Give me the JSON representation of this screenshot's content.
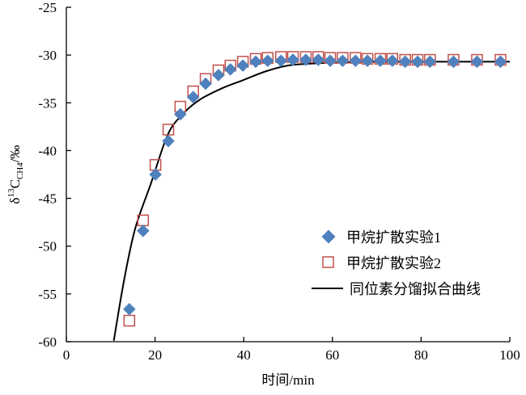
{
  "chart_data": {
    "type": "scatter",
    "xlabel": "时间/min",
    "ylabel_parts": {
      "delta": "δ",
      "sup": "13",
      "main": "C",
      "sub": "CH4",
      "unit": "/‰"
    },
    "xlim": [
      0,
      100
    ],
    "ylim": [
      -60,
      -25
    ],
    "x_ticks": [
      "0",
      "20",
      "40",
      "60",
      "80",
      "100"
    ],
    "y_ticks": [
      "-60",
      "-55",
      "-50",
      "-45",
      "-40",
      "-35",
      "-30",
      "-25"
    ],
    "grid": false,
    "legend_position": "bottom-right",
    "series": [
      {
        "name": "甲烷扩散实验1",
        "marker": "diamond",
        "color": "#4f81bd",
        "x": [
          14.2,
          17.3,
          20.1,
          23.0,
          25.7,
          28.6,
          31.4,
          34.3,
          37.0,
          39.8,
          42.7,
          45.4,
          48.4,
          51.1,
          54.0,
          56.8,
          59.5,
          62.3,
          65.2,
          67.9,
          70.8,
          73.5,
          76.4,
          79.2,
          82.0,
          87.3,
          92.6,
          97.9
        ],
        "y": [
          -56.6,
          -48.4,
          -42.5,
          -39.0,
          -36.2,
          -34.4,
          -33.0,
          -32.1,
          -31.5,
          -31.1,
          -30.7,
          -30.6,
          -30.6,
          -30.5,
          -30.5,
          -30.5,
          -30.6,
          -30.6,
          -30.6,
          -30.6,
          -30.6,
          -30.6,
          -30.7,
          -30.7,
          -30.7,
          -30.7,
          -30.7,
          -30.7
        ]
      },
      {
        "name": "甲烷扩散实验2",
        "marker": "square-open",
        "color": "#c0504d",
        "x": [
          14.2,
          17.3,
          20.1,
          23.0,
          25.7,
          28.6,
          31.4,
          34.3,
          37.0,
          39.8,
          42.7,
          45.4,
          48.4,
          51.1,
          54.0,
          56.8,
          59.5,
          62.3,
          65.2,
          67.9,
          70.8,
          73.5,
          76.4,
          79.2,
          82.0,
          87.3,
          92.6,
          97.9
        ],
        "y": [
          -57.8,
          -47.3,
          -41.5,
          -37.8,
          -35.4,
          -33.8,
          -32.5,
          -31.6,
          -31.1,
          -30.7,
          -30.4,
          -30.3,
          -30.2,
          -30.2,
          -30.2,
          -30.2,
          -30.3,
          -30.3,
          -30.3,
          -30.4,
          -30.4,
          -30.4,
          -30.5,
          -30.5,
          -30.5,
          -30.5,
          -30.5,
          -30.5
        ]
      },
      {
        "name": "同位素分馏拟合曲线",
        "marker": "line",
        "color": "#000000",
        "x": [
          10.7,
          13,
          15.5,
          19.1,
          22.8,
          26,
          30,
          35,
          40,
          45,
          50,
          55,
          60,
          70,
          80,
          90,
          100
        ],
        "y": [
          -59.9,
          -53.6,
          -48.2,
          -43.4,
          -38.4,
          -36.3,
          -34.7,
          -33.5,
          -32.6,
          -31.7,
          -31.1,
          -30.9,
          -30.8,
          -30.7,
          -30.7,
          -30.7,
          -30.7
        ]
      }
    ]
  }
}
